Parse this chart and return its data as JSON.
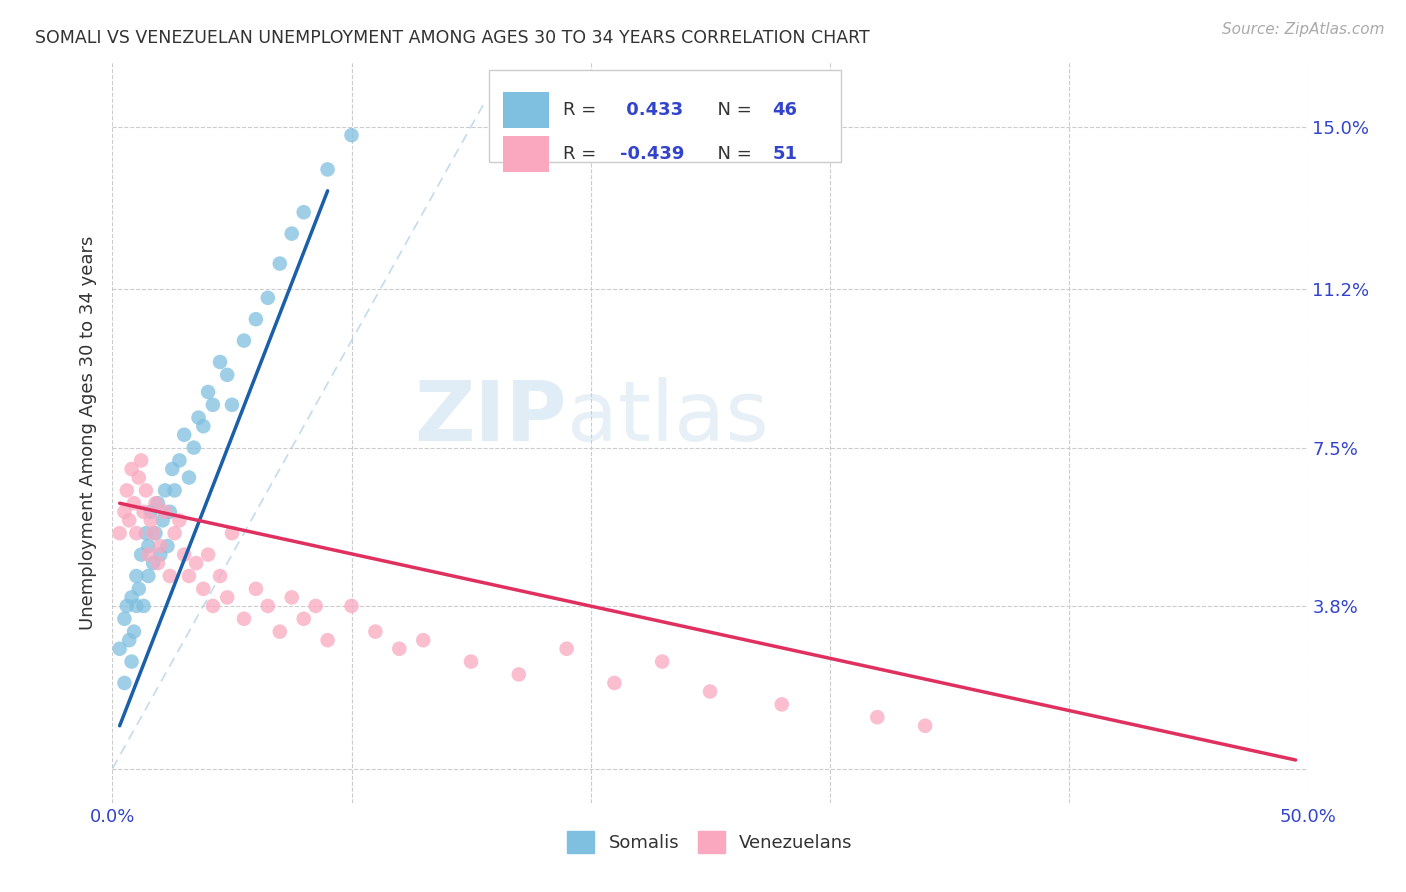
{
  "title": "SOMALI VS VENEZUELAN UNEMPLOYMENT AMONG AGES 30 TO 34 YEARS CORRELATION CHART",
  "source": "Source: ZipAtlas.com",
  "ylabel": "Unemployment Among Ages 30 to 34 years",
  "xlim": [
    0.0,
    0.5
  ],
  "ylim": [
    -0.008,
    0.165
  ],
  "xtick_positions": [
    0.0,
    0.1,
    0.2,
    0.3,
    0.4,
    0.5
  ],
  "xtick_labels": [
    "0.0%",
    "",
    "",
    "",
    "",
    "50.0%"
  ],
  "ytick_positions": [
    0.0,
    0.038,
    0.075,
    0.112,
    0.15
  ],
  "ytick_labels": [
    "",
    "3.8%",
    "7.5%",
    "11.2%",
    "15.0%"
  ],
  "somali_R": 0.433,
  "somali_N": 46,
  "venezuelan_R": -0.439,
  "venezuelan_N": 51,
  "somali_color": "#7fbfdf",
  "venezuelan_color": "#f9a8c0",
  "somali_line_color": "#1a5fa8",
  "venezuelan_line_color": "#e03060",
  "diagonal_color": "#aacce8",
  "background_color": "#ffffff",
  "somali_x": [
    0.003,
    0.005,
    0.005,
    0.006,
    0.007,
    0.008,
    0.008,
    0.009,
    0.01,
    0.01,
    0.011,
    0.012,
    0.013,
    0.014,
    0.015,
    0.015,
    0.016,
    0.017,
    0.018,
    0.019,
    0.02,
    0.021,
    0.022,
    0.023,
    0.024,
    0.025,
    0.026,
    0.028,
    0.03,
    0.032,
    0.034,
    0.036,
    0.038,
    0.04,
    0.042,
    0.045,
    0.048,
    0.05,
    0.055,
    0.06,
    0.065,
    0.07,
    0.075,
    0.08,
    0.09,
    0.1
  ],
  "somali_y": [
    0.028,
    0.02,
    0.035,
    0.038,
    0.03,
    0.025,
    0.04,
    0.032,
    0.038,
    0.045,
    0.042,
    0.05,
    0.038,
    0.055,
    0.045,
    0.052,
    0.06,
    0.048,
    0.055,
    0.062,
    0.05,
    0.058,
    0.065,
    0.052,
    0.06,
    0.07,
    0.065,
    0.072,
    0.078,
    0.068,
    0.075,
    0.082,
    0.08,
    0.088,
    0.085,
    0.095,
    0.092,
    0.085,
    0.1,
    0.105,
    0.11,
    0.118,
    0.125,
    0.13,
    0.14,
    0.148
  ],
  "venezuelan_x": [
    0.003,
    0.005,
    0.006,
    0.007,
    0.008,
    0.009,
    0.01,
    0.011,
    0.012,
    0.013,
    0.014,
    0.015,
    0.016,
    0.017,
    0.018,
    0.019,
    0.02,
    0.022,
    0.024,
    0.026,
    0.028,
    0.03,
    0.032,
    0.035,
    0.038,
    0.04,
    0.042,
    0.045,
    0.048,
    0.05,
    0.055,
    0.06,
    0.065,
    0.07,
    0.075,
    0.08,
    0.085,
    0.09,
    0.1,
    0.11,
    0.12,
    0.13,
    0.15,
    0.17,
    0.19,
    0.21,
    0.23,
    0.25,
    0.28,
    0.32,
    0.34
  ],
  "venezuelan_y": [
    0.055,
    0.06,
    0.065,
    0.058,
    0.07,
    0.062,
    0.055,
    0.068,
    0.072,
    0.06,
    0.065,
    0.05,
    0.058,
    0.055,
    0.062,
    0.048,
    0.052,
    0.06,
    0.045,
    0.055,
    0.058,
    0.05,
    0.045,
    0.048,
    0.042,
    0.05,
    0.038,
    0.045,
    0.04,
    0.055,
    0.035,
    0.042,
    0.038,
    0.032,
    0.04,
    0.035,
    0.038,
    0.03,
    0.038,
    0.032,
    0.028,
    0.03,
    0.025,
    0.022,
    0.028,
    0.02,
    0.025,
    0.018,
    0.015,
    0.012,
    0.01
  ],
  "somali_line_x": [
    0.003,
    0.09
  ],
  "somali_line_y": [
    0.01,
    0.135
  ],
  "venezuelan_line_x": [
    0.003,
    0.495
  ],
  "venezuelan_line_y": [
    0.062,
    0.002
  ]
}
